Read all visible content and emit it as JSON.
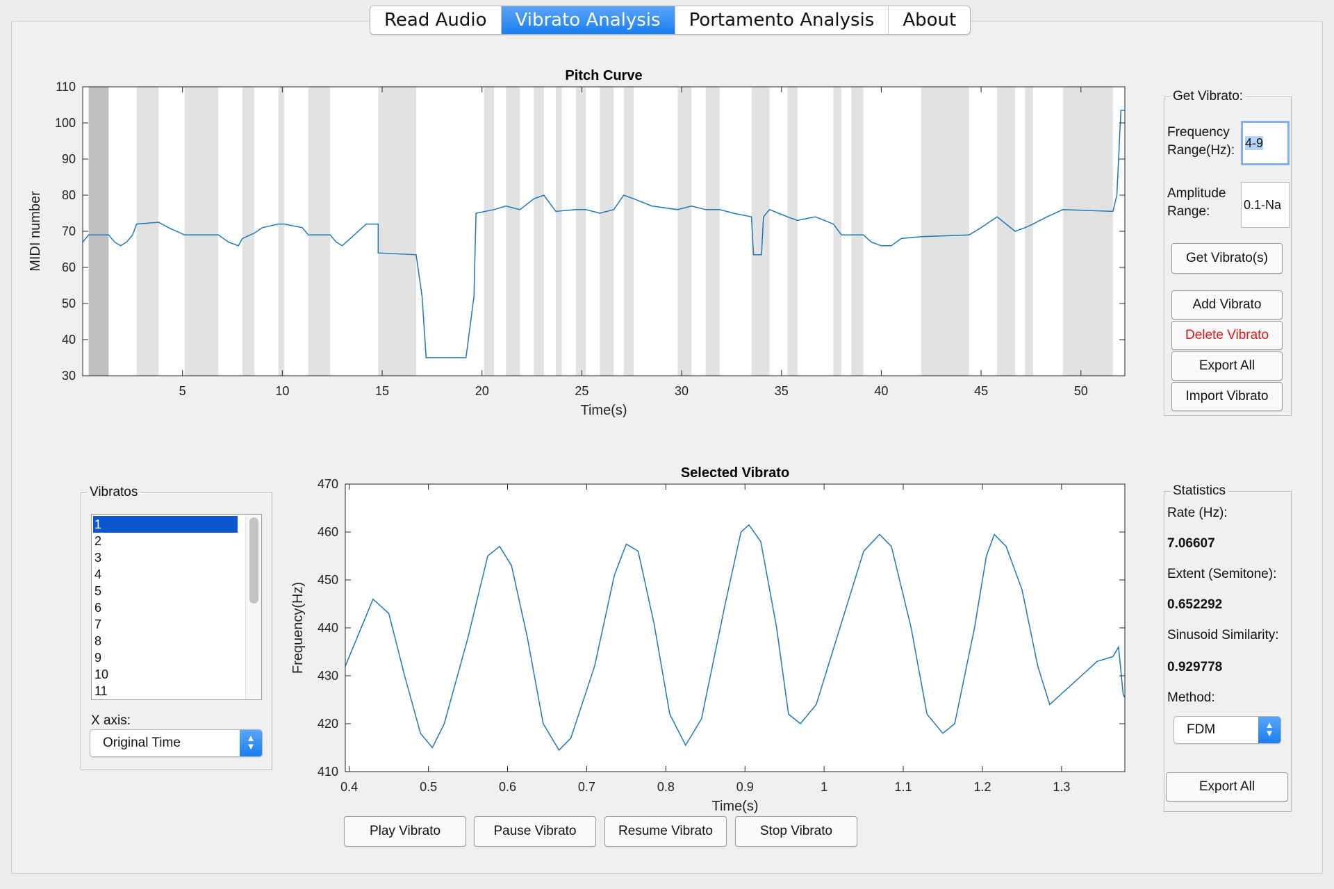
{
  "tabs": [
    "Read Audio",
    "Vibrato Analysis",
    "Portamento Analysis",
    "About"
  ],
  "active_tab": 1,
  "get_vibrato": {
    "title": "Get Vibrato:",
    "freq_label_1": "Frequency",
    "freq_label_2": "Range(Hz):",
    "freq_value": "4-9",
    "amp_label_1": "Amplitude",
    "amp_label_2": "Range:",
    "amp_value": "0.1-Na",
    "get_button": "Get Vibrato(s)",
    "add_button": "Add Vibrato",
    "delete_button": "Delete Vibrato",
    "export_button": "Export All",
    "import_button": "Import Vibrato"
  },
  "vibratos": {
    "title": "Vibratos",
    "items": [
      "1",
      "2",
      "3",
      "4",
      "5",
      "6",
      "7",
      "8",
      "9",
      "10",
      "11"
    ],
    "selected_index": 0,
    "xaxis_label": "X axis:",
    "xaxis_value": "Original Time"
  },
  "statistics": {
    "title": "Statistics",
    "rate_label": "Rate (Hz):",
    "rate_value": "7.06607",
    "extent_label": "Extent (Semitone):",
    "extent_value": "0.652292",
    "similarity_label": "Sinusoid Similarity:",
    "similarity_value": "0.929778",
    "method_label": "Method:",
    "method_value": "FDM",
    "export_button": "Export All"
  },
  "playback": {
    "play": "Play Vibrato",
    "pause": "Pause Vibrato",
    "resume": "Resume Vibrato",
    "stop": "Stop Vibrato"
  },
  "colors": {
    "line": "#1f77b4",
    "shade": "#e2e2e2",
    "shade_dark": "#c0c0c0",
    "accent": "#1a7ef0",
    "danger": "#e51414"
  },
  "chart_data": [
    {
      "type": "line",
      "title": "Pitch Curve",
      "xlabel": "Time(s)",
      "ylabel": "MIDI number",
      "xlim": [
        0,
        52.2
      ],
      "ylim": [
        30,
        110
      ],
      "xticks": [
        5,
        10,
        15,
        20,
        25,
        30,
        35,
        40,
        45,
        50
      ],
      "yticks": [
        30,
        40,
        50,
        60,
        70,
        80,
        90,
        100,
        110
      ],
      "shaded_regions": [
        [
          0.3,
          1.3
        ],
        [
          2.7,
          3.8
        ],
        [
          5.1,
          6.8
        ],
        [
          8.0,
          8.6
        ],
        [
          9.8,
          10.1
        ],
        [
          11.3,
          12.4
        ],
        [
          14.8,
          16.7
        ],
        [
          20.1,
          20.6
        ],
        [
          21.2,
          21.9
        ],
        [
          22.6,
          23.1
        ],
        [
          23.7,
          24.0
        ],
        [
          24.7,
          25.2
        ],
        [
          25.9,
          26.6
        ],
        [
          27.1,
          27.6
        ],
        [
          29.8,
          30.5
        ],
        [
          31.2,
          31.9
        ],
        [
          33.5,
          34.4
        ],
        [
          35.3,
          35.8
        ],
        [
          37.6,
          38.0
        ],
        [
          38.5,
          39.1
        ],
        [
          42.0,
          44.4
        ],
        [
          45.8,
          46.7
        ],
        [
          47.2,
          47.6
        ],
        [
          49.1,
          51.6
        ]
      ],
      "selected_region": [
        0.3,
        1.3
      ],
      "series": [
        {
          "values": [
            [
              0,
              67
            ],
            [
              0.3,
              69
            ],
            [
              1.3,
              69
            ],
            [
              1.6,
              67
            ],
            [
              1.9,
              66
            ],
            [
              2.2,
              67
            ],
            [
              2.5,
              69
            ],
            [
              2.7,
              72
            ],
            [
              3.8,
              72.5
            ],
            [
              4.3,
              71
            ],
            [
              5.1,
              69
            ],
            [
              6.8,
              69
            ],
            [
              7.3,
              67
            ],
            [
              7.8,
              66
            ],
            [
              8.0,
              68
            ],
            [
              8.6,
              69.5
            ],
            [
              9.0,
              71
            ],
            [
              9.8,
              72
            ],
            [
              10.1,
              72
            ],
            [
              11.0,
              71
            ],
            [
              11.3,
              69
            ],
            [
              12.4,
              69
            ],
            [
              12.7,
              67
            ],
            [
              13.0,
              66
            ],
            [
              13.4,
              68
            ],
            [
              13.8,
              70
            ],
            [
              14.2,
              72
            ],
            [
              14.8,
              72
            ],
            [
              14.8,
              64
            ],
            [
              16.7,
              63.5
            ],
            [
              17.0,
              52
            ],
            [
              17.2,
              35
            ],
            [
              19.2,
              35
            ],
            [
              19.6,
              52
            ],
            [
              19.7,
              75
            ],
            [
              20.6,
              76
            ],
            [
              21.2,
              77
            ],
            [
              21.9,
              76
            ],
            [
              22.6,
              79
            ],
            [
              23.1,
              80
            ],
            [
              23.7,
              75.5
            ],
            [
              24.7,
              76
            ],
            [
              25.2,
              76
            ],
            [
              25.9,
              75
            ],
            [
              26.6,
              76
            ],
            [
              27.1,
              80
            ],
            [
              27.6,
              79
            ],
            [
              28.5,
              77
            ],
            [
              29.8,
              76
            ],
            [
              30.5,
              77
            ],
            [
              31.2,
              76
            ],
            [
              31.9,
              76
            ],
            [
              32.6,
              75
            ],
            [
              33.5,
              74
            ],
            [
              33.6,
              63.5
            ],
            [
              34.0,
              63.5
            ],
            [
              34.1,
              74
            ],
            [
              34.4,
              76
            ],
            [
              35.3,
              74
            ],
            [
              35.8,
              73
            ],
            [
              36.7,
              74
            ],
            [
              37.6,
              72
            ],
            [
              38.0,
              69
            ],
            [
              39.1,
              69
            ],
            [
              39.5,
              67
            ],
            [
              40.0,
              66
            ],
            [
              40.5,
              66
            ],
            [
              41.0,
              68
            ],
            [
              42.0,
              68.5
            ],
            [
              44.4,
              69
            ],
            [
              45.0,
              71
            ],
            [
              45.8,
              74
            ],
            [
              46.7,
              70
            ],
            [
              47.2,
              71
            ],
            [
              47.6,
              72
            ],
            [
              48.3,
              74
            ],
            [
              49.1,
              76
            ],
            [
              51.6,
              75.5
            ],
            [
              51.8,
              80
            ],
            [
              52.0,
              103.5
            ],
            [
              52.2,
              103.5
            ]
          ]
        }
      ]
    },
    {
      "type": "line",
      "title": "Selected Vibrato",
      "xlabel": "Time(s)",
      "ylabel": "Frequency(Hz)",
      "xlim": [
        0.395,
        1.38
      ],
      "ylim": [
        410,
        470
      ],
      "xticks": [
        0.4,
        0.5,
        0.6,
        0.7,
        0.8,
        0.9,
        1,
        1.1,
        1.2,
        1.3
      ],
      "yticks": [
        410,
        420,
        430,
        440,
        450,
        460,
        470
      ],
      "series": [
        {
          "values": [
            [
              0.395,
              432
            ],
            [
              0.41,
              438
            ],
            [
              0.43,
              446
            ],
            [
              0.45,
              443
            ],
            [
              0.47,
              430
            ],
            [
              0.49,
              418
            ],
            [
              0.505,
              415
            ],
            [
              0.52,
              420
            ],
            [
              0.55,
              438
            ],
            [
              0.575,
              455
            ],
            [
              0.59,
              457
            ],
            [
              0.605,
              453
            ],
            [
              0.625,
              438
            ],
            [
              0.645,
              420
            ],
            [
              0.665,
              414.5
            ],
            [
              0.68,
              417
            ],
            [
              0.71,
              432
            ],
            [
              0.735,
              451
            ],
            [
              0.75,
              457.5
            ],
            [
              0.765,
              456
            ],
            [
              0.785,
              441
            ],
            [
              0.805,
              422
            ],
            [
              0.825,
              415.5
            ],
            [
              0.845,
              421
            ],
            [
              0.875,
              445
            ],
            [
              0.895,
              460
            ],
            [
              0.905,
              461.5
            ],
            [
              0.92,
              458
            ],
            [
              0.94,
              440
            ],
            [
              0.955,
              422
            ],
            [
              0.97,
              420
            ],
            [
              0.99,
              424
            ],
            [
              1.02,
              440
            ],
            [
              1.05,
              456
            ],
            [
              1.07,
              459.5
            ],
            [
              1.085,
              457
            ],
            [
              1.11,
              440
            ],
            [
              1.13,
              422
            ],
            [
              1.15,
              418
            ],
            [
              1.165,
              420
            ],
            [
              1.19,
              440
            ],
            [
              1.205,
              455
            ],
            [
              1.215,
              459.5
            ],
            [
              1.23,
              457
            ],
            [
              1.25,
              448
            ],
            [
              1.27,
              432
            ],
            [
              1.285,
              424
            ],
            [
              1.305,
              427
            ],
            [
              1.325,
              430
            ],
            [
              1.345,
              433
            ],
            [
              1.365,
              434
            ],
            [
              1.372,
              436
            ],
            [
              1.378,
              426
            ],
            [
              1.38,
              425.5
            ]
          ]
        }
      ]
    }
  ]
}
